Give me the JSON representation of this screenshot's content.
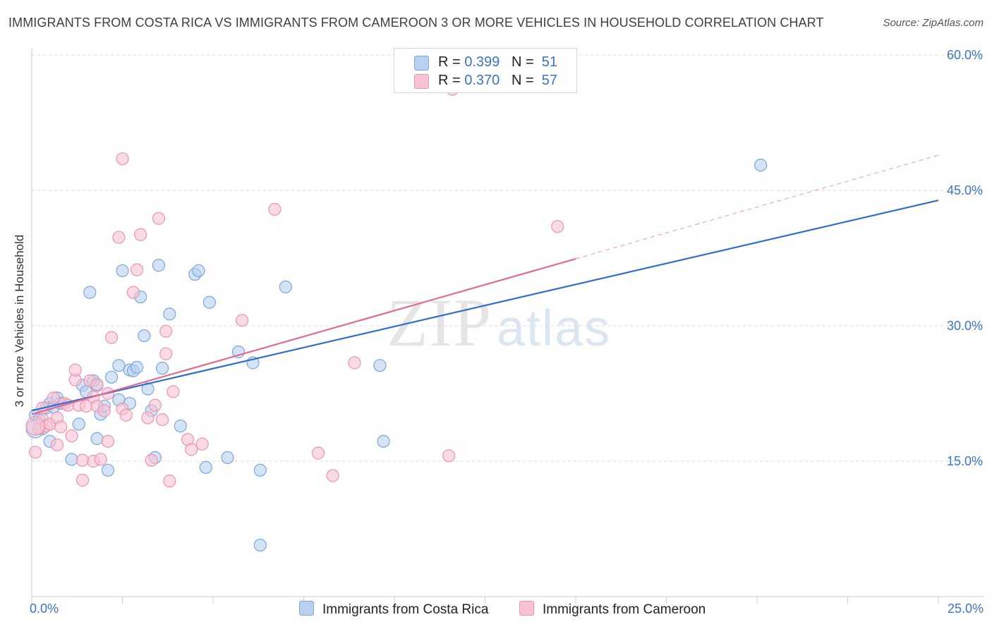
{
  "title": "IMMIGRANTS FROM COSTA RICA VS IMMIGRANTS FROM CAMEROON 3 OR MORE VEHICLES IN HOUSEHOLD CORRELATION CHART",
  "source": "Source: ZipAtlas.com",
  "watermark": {
    "zip": "ZIP",
    "atlas": "atlas"
  },
  "legend": {
    "r_label": "R =",
    "n_label": "N =",
    "rows": [
      {
        "r": "0.399",
        "n": "51"
      },
      {
        "r": "0.370",
        "n": "57"
      }
    ]
  },
  "bottom_legend": [
    "Immigrants from Costa Rica",
    "Immigrants from Cameroon"
  ],
  "colors": {
    "blue_fill": "#b8d1f0",
    "blue_stroke": "#7aa6dd",
    "blue_line": "#2f6fcc",
    "pink_fill": "#f7c3d4",
    "pink_stroke": "#ea94b0",
    "pink_line": "#e06a93",
    "tick_color": "#3a74c8",
    "grid": "#d9d9d9"
  },
  "chart_data": {
    "type": "scatter",
    "title": "IMMIGRANTS FROM COSTA RICA VS IMMIGRANTS FROM CAMEROON 3 OR MORE VEHICLES IN HOUSEHOLD CORRELATION CHART",
    "xlabel": "",
    "ylabel": "3 or more Vehicles in Household",
    "xlim": [
      0,
      25
    ],
    "ylim": [
      0,
      60
    ],
    "x_tick_labels": [
      "0.0%",
      "25.0%"
    ],
    "y_ticks": [
      15,
      30,
      45,
      60
    ],
    "y_tick_labels": [
      "15.0%",
      "30.0%",
      "45.0%",
      "60.0%"
    ],
    "legend_position": "top-center",
    "series": [
      {
        "name": "Immigrants from Costa Rica",
        "r": 0.399,
        "n": 51,
        "trend": {
          "x0": 0,
          "y0": 20.6,
          "x1": 25,
          "y1": 43.9,
          "dashed_from": null
        },
        "points": [
          [
            0.1,
            20.1
          ],
          [
            0.2,
            19.6
          ],
          [
            0.3,
            18.6
          ],
          [
            0.4,
            20.9
          ],
          [
            0.5,
            17.2
          ],
          [
            0.5,
            21.4
          ],
          [
            0.6,
            21.0
          ],
          [
            0.7,
            22.0
          ],
          [
            0.8,
            21.4
          ],
          [
            1.1,
            15.2
          ],
          [
            1.3,
            19.1
          ],
          [
            1.4,
            23.4
          ],
          [
            1.5,
            22.7
          ],
          [
            1.6,
            33.7
          ],
          [
            1.7,
            23.9
          ],
          [
            1.8,
            23.4
          ],
          [
            1.8,
            17.5
          ],
          [
            1.9,
            20.2
          ],
          [
            2.0,
            21.1
          ],
          [
            2.1,
            14.0
          ],
          [
            2.2,
            24.3
          ],
          [
            2.4,
            21.8
          ],
          [
            2.4,
            25.6
          ],
          [
            2.5,
            36.1
          ],
          [
            2.7,
            21.4
          ],
          [
            2.7,
            25.1
          ],
          [
            2.8,
            25.0
          ],
          [
            2.9,
            25.4
          ],
          [
            3.0,
            33.2
          ],
          [
            3.1,
            28.9
          ],
          [
            3.2,
            23.0
          ],
          [
            3.3,
            20.6
          ],
          [
            3.4,
            15.4
          ],
          [
            3.5,
            36.7
          ],
          [
            3.6,
            25.3
          ],
          [
            3.8,
            31.3
          ],
          [
            4.1,
            18.9
          ],
          [
            4.5,
            35.7
          ],
          [
            4.6,
            36.1
          ],
          [
            4.8,
            14.3
          ],
          [
            4.9,
            32.6
          ],
          [
            5.4,
            15.4
          ],
          [
            5.7,
            27.1
          ],
          [
            6.1,
            25.9
          ],
          [
            6.3,
            14.0
          ],
          [
            6.3,
            5.7
          ],
          [
            7.0,
            34.3
          ],
          [
            9.6,
            25.6
          ],
          [
            9.7,
            17.2
          ],
          [
            20.1,
            47.8
          ],
          [
            0.1,
            18.6
          ]
        ]
      },
      {
        "name": "Immigrants from Cameroon",
        "r": 0.37,
        "n": 57,
        "trend": {
          "x0": 0,
          "y0": 20.2,
          "x1": 25,
          "y1": 48.9,
          "dashed_from": 15
        },
        "points": [
          [
            0.1,
            16.0
          ],
          [
            0.2,
            18.6
          ],
          [
            0.3,
            19.6
          ],
          [
            0.3,
            20.9
          ],
          [
            0.4,
            18.9
          ],
          [
            0.5,
            19.1
          ],
          [
            0.6,
            22.0
          ],
          [
            0.7,
            16.8
          ],
          [
            0.7,
            19.8
          ],
          [
            0.8,
            18.8
          ],
          [
            0.9,
            21.4
          ],
          [
            1.0,
            21.2
          ],
          [
            1.1,
            17.8
          ],
          [
            1.2,
            24.0
          ],
          [
            1.2,
            25.1
          ],
          [
            1.3,
            21.2
          ],
          [
            1.4,
            12.9
          ],
          [
            1.4,
            15.1
          ],
          [
            1.5,
            21.1
          ],
          [
            1.6,
            23.9
          ],
          [
            1.7,
            22.1
          ],
          [
            1.7,
            15.0
          ],
          [
            1.8,
            21.1
          ],
          [
            1.8,
            23.5
          ],
          [
            1.9,
            15.2
          ],
          [
            2.0,
            20.6
          ],
          [
            2.1,
            17.2
          ],
          [
            2.1,
            22.5
          ],
          [
            2.2,
            28.7
          ],
          [
            2.4,
            39.8
          ],
          [
            2.5,
            20.8
          ],
          [
            2.5,
            48.5
          ],
          [
            2.6,
            20.1
          ],
          [
            2.8,
            33.7
          ],
          [
            2.9,
            36.2
          ],
          [
            3.0,
            40.1
          ],
          [
            3.2,
            19.8
          ],
          [
            3.3,
            15.1
          ],
          [
            3.4,
            21.2
          ],
          [
            3.5,
            41.9
          ],
          [
            3.6,
            19.6
          ],
          [
            3.7,
            26.9
          ],
          [
            3.7,
            29.4
          ],
          [
            3.8,
            12.8
          ],
          [
            3.9,
            22.7
          ],
          [
            4.3,
            17.4
          ],
          [
            4.4,
            16.3
          ],
          [
            4.7,
            16.9
          ],
          [
            5.8,
            30.6
          ],
          [
            6.7,
            42.9
          ],
          [
            7.9,
            15.9
          ],
          [
            8.3,
            13.4
          ],
          [
            8.9,
            25.9
          ],
          [
            11.5,
            15.6
          ],
          [
            11.6,
            56.2
          ],
          [
            14.5,
            41.0
          ],
          [
            0.1,
            18.9
          ]
        ]
      }
    ]
  }
}
